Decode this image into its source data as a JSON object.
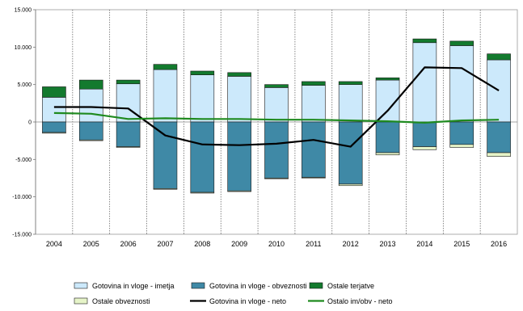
{
  "chart_data": {
    "type": "bar",
    "categories": [
      "2004",
      "2005",
      "2006",
      "2007",
      "2008",
      "2009",
      "2010",
      "2011",
      "2012",
      "2013",
      "2014",
      "2015",
      "2016"
    ],
    "ylim": [
      -15000,
      15000
    ],
    "yticks": [
      15000,
      10000,
      5000,
      0,
      -5000,
      -10000,
      -15000
    ],
    "ytick_labels": [
      "15.000",
      "10.000",
      "5.000",
      "0",
      "-5.000",
      "-10.000",
      "-15.000"
    ],
    "grid": "vertical dotted",
    "legend_position": "bottom",
    "stack_positive": [
      {
        "name": "Gotovina in vloge - imetja",
        "color": "#cce9fb",
        "values": [
          3300,
          4400,
          5100,
          7000,
          6300,
          6100,
          4600,
          4900,
          5000,
          5600,
          10600,
          10200,
          8300
        ]
      },
      {
        "name": "Ostale terjatve",
        "color": "#137a2e",
        "values": [
          1400,
          1200,
          500,
          700,
          500,
          500,
          400,
          500,
          400,
          300,
          500,
          600,
          800
        ]
      }
    ],
    "stack_negative": [
      {
        "name": "Gotovina in vloge - obveznosti",
        "color": "#3f89a6",
        "values": [
          -1400,
          -2400,
          -3300,
          -8900,
          -9400,
          -9200,
          -7500,
          -7400,
          -8300,
          -4100,
          -3300,
          -3000,
          -4100
        ]
      },
      {
        "name": "Ostale obveznosti",
        "color": "#e6f4c8",
        "values": [
          -100,
          -100,
          -100,
          -100,
          -100,
          -100,
          -100,
          -100,
          -200,
          -300,
          -400,
          -400,
          -500
        ]
      }
    ],
    "lines": [
      {
        "name": "Gotovina in vloge - neto",
        "color": "#000000",
        "values": [
          2000,
          2000,
          1800,
          -1800,
          -3000,
          -3100,
          -2900,
          -2400,
          -3300,
          1500,
          7300,
          7200,
          4200
        ]
      },
      {
        "name": "Ostalo im/obv - neto",
        "color": "#1f8a1f",
        "values": [
          1200,
          1100,
          400,
          500,
          400,
          400,
          300,
          300,
          200,
          100,
          -100,
          200,
          300
        ]
      }
    ],
    "legend": [
      {
        "label": "Gotovina in vloge - imetja",
        "kind": "box",
        "color": "#cce9fb"
      },
      {
        "label": "Gotovina in vloge - obveznosti",
        "kind": "box",
        "color": "#3f89a6"
      },
      {
        "label": "Ostale terjatve",
        "kind": "box",
        "color": "#137a2e"
      },
      {
        "label": "Ostale obveznosti",
        "kind": "box",
        "color": "#e6f4c8"
      },
      {
        "label": "Gotovina in vloge - neto",
        "kind": "line",
        "color": "#000000"
      },
      {
        "label": "Ostalo im/obv - neto",
        "kind": "line",
        "color": "#1f8a1f"
      }
    ]
  }
}
